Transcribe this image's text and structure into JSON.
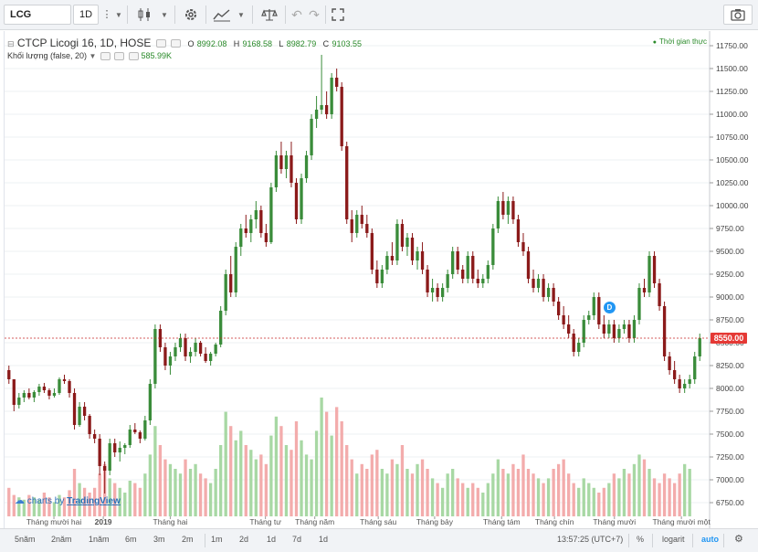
{
  "toolbar": {
    "symbol": "LCG",
    "interval": "1D",
    "icons": [
      "more-icon",
      "candles-icon",
      "gear-icon",
      "indicators-icon",
      "compare-icon",
      "undo-icon",
      "redo-icon",
      "fullscreen-icon",
      "camera-icon"
    ]
  },
  "legend": {
    "title": "CTCP Licogi 16, 1D, HOSE",
    "o_label": "O",
    "o_value": "8992.08",
    "h_label": "H",
    "h_value": "9168.58",
    "l_label": "L",
    "l_value": "8982.79",
    "c_label": "C",
    "c_value": "9103.55",
    "volume_label": "Khối lượng (false, 20)",
    "volume_value": "585.99K",
    "realtime": "Thời gian thực"
  },
  "price_axis": {
    "ticks": [
      "11750.00",
      "11500.00",
      "11250.00",
      "11000.00",
      "10750.00",
      "10500.00",
      "10250.00",
      "10000.00",
      "9750.00",
      "9500.00",
      "9250.00",
      "9000.00",
      "8750.00",
      "8500.00",
      "8250.00",
      "8000.00",
      "7750.00",
      "7500.00",
      "7250.00",
      "7000.00",
      "6750.00"
    ],
    "current_price": "8550.00"
  },
  "time_axis": [
    "Tháng mười hai",
    "2019",
    "Tháng hai",
    "Tháng tư",
    "Tháng năm",
    "Tháng sáu",
    "Tháng bảy",
    "Tháng tám",
    "Tháng chín",
    "Tháng mười",
    "Tháng mười một"
  ],
  "marker": "D",
  "branding": {
    "prefix": "charts by",
    "name": "TradingView"
  },
  "bottom": {
    "ranges": [
      "5năm",
      "2năm",
      "1năm",
      "6m",
      "3m",
      "2m",
      "1m",
      "2d",
      "1d",
      "7d",
      "1d"
    ],
    "time": "13:57:25 (UTC+7)",
    "percent": "%",
    "log": "logarit",
    "auto": "auto"
  },
  "colors": {
    "up": "#3a8c3a",
    "down": "#8b1a1a",
    "vol_up": "#9fd49a",
    "vol_down": "#f2a3a3",
    "accent": "#2196f3"
  },
  "chart_data": {
    "type": "candlestick",
    "y_range": [
      6600,
      11850
    ],
    "candles": [
      [
        8200,
        8250,
        8050,
        8100
      ],
      [
        8100,
        8100,
        7750,
        7820
      ],
      [
        7820,
        7950,
        7780,
        7900
      ],
      [
        7900,
        7980,
        7850,
        7950
      ],
      [
        7950,
        8000,
        7880,
        7900
      ],
      [
        7900,
        7980,
        7850,
        7960
      ],
      [
        7960,
        8050,
        7920,
        8020
      ],
      [
        8020,
        8060,
        7950,
        7980
      ],
      [
        7980,
        8000,
        7880,
        7920
      ],
      [
        7920,
        8000,
        7900,
        7950
      ],
      [
        7950,
        8120,
        7930,
        8100
      ],
      [
        8100,
        8150,
        8050,
        8080
      ],
      [
        8080,
        8100,
        7900,
        7950
      ],
      [
        7950,
        8000,
        7550,
        7600
      ],
      [
        7600,
        7850,
        7580,
        7800
      ],
      [
        7800,
        7850,
        7650,
        7700
      ],
      [
        7700,
        7720,
        7450,
        7500
      ],
      [
        7500,
        7550,
        7400,
        7450
      ],
      [
        7450,
        7500,
        7050,
        7150
      ],
      [
        7150,
        7200,
        6850,
        7100
      ],
      [
        7100,
        7450,
        7050,
        7400
      ],
      [
        7400,
        7450,
        7250,
        7300
      ],
      [
        7300,
        7420,
        7200,
        7350
      ],
      [
        7350,
        7400,
        7280,
        7380
      ],
      [
        7380,
        7600,
        7350,
        7550
      ],
      [
        7550,
        7620,
        7500,
        7520
      ],
      [
        7520,
        7540,
        7400,
        7450
      ],
      [
        7450,
        7700,
        7430,
        7650
      ],
      [
        7650,
        8100,
        7600,
        8050
      ],
      [
        8050,
        8700,
        8000,
        8650
      ],
      [
        8650,
        8700,
        8400,
        8450
      ],
      [
        8450,
        8500,
        8200,
        8250
      ],
      [
        8250,
        8400,
        8150,
        8350
      ],
      [
        8350,
        8500,
        8300,
        8450
      ],
      [
        8450,
        8600,
        8400,
        8550
      ],
      [
        8550,
        8600,
        8300,
        8350
      ],
      [
        8350,
        8450,
        8280,
        8400
      ],
      [
        8400,
        8550,
        8350,
        8500
      ],
      [
        8500,
        8520,
        8350,
        8380
      ],
      [
        8380,
        8450,
        8280,
        8300
      ],
      [
        8300,
        8400,
        8250,
        8380
      ],
      [
        8380,
        8500,
        8350,
        8480
      ],
      [
        8480,
        8900,
        8450,
        8850
      ],
      [
        8850,
        9300,
        8800,
        9250
      ],
      [
        9250,
        9450,
        9000,
        9050
      ],
      [
        9050,
        9600,
        9000,
        9550
      ],
      [
        9550,
        9800,
        9450,
        9750
      ],
      [
        9750,
        9900,
        9650,
        9700
      ],
      [
        9700,
        9900,
        9600,
        9850
      ],
      [
        9850,
        10050,
        9750,
        9950
      ],
      [
        9950,
        10000,
        9650,
        9700
      ],
      [
        9700,
        9800,
        9550,
        9600
      ],
      [
        9600,
        10250,
        9580,
        10200
      ],
      [
        10200,
        10600,
        10150,
        10550
      ],
      [
        10550,
        10700,
        10350,
        10400
      ],
      [
        10400,
        10600,
        10300,
        10550
      ],
      [
        10550,
        10700,
        10200,
        10250
      ],
      [
        10250,
        10300,
        9800,
        9850
      ],
      [
        9850,
        10350,
        9800,
        10300
      ],
      [
        10300,
        10600,
        10250,
        10550
      ],
      [
        10550,
        11000,
        10500,
        10950
      ],
      [
        10950,
        11200,
        10850,
        11050
      ],
      [
        11050,
        11650,
        11000,
        11100
      ],
      [
        11100,
        11250,
        10950,
        11000
      ],
      [
        11000,
        11450,
        10950,
        11400
      ],
      [
        11400,
        11500,
        11250,
        11300
      ],
      [
        11300,
        11350,
        10600,
        10650
      ],
      [
        10650,
        10700,
        9800,
        9850
      ],
      [
        9850,
        9950,
        9600,
        9700
      ],
      [
        9700,
        9950,
        9650,
        9900
      ],
      [
        9900,
        10000,
        9750,
        9800
      ],
      [
        9800,
        9900,
        9650,
        9700
      ],
      [
        9700,
        9750,
        9250,
        9300
      ],
      [
        9300,
        9400,
        9100,
        9150
      ],
      [
        9150,
        9350,
        9100,
        9300
      ],
      [
        9300,
        9500,
        9250,
        9450
      ],
      [
        9450,
        9600,
        9350,
        9400
      ],
      [
        9400,
        9850,
        9350,
        9800
      ],
      [
        9800,
        9850,
        9500,
        9550
      ],
      [
        9550,
        9700,
        9450,
        9650
      ],
      [
        9650,
        9700,
        9350,
        9400
      ],
      [
        9400,
        9550,
        9300,
        9500
      ],
      [
        9500,
        9600,
        9250,
        9300
      ],
      [
        9300,
        9350,
        9000,
        9050
      ],
      [
        9050,
        9200,
        8950,
        9100
      ],
      [
        9100,
        9150,
        8950,
        9000
      ],
      [
        9000,
        9150,
        8950,
        9100
      ],
      [
        9100,
        9300,
        9050,
        9250
      ],
      [
        9250,
        9550,
        9200,
        9500
      ],
      [
        9500,
        9550,
        9250,
        9300
      ],
      [
        9300,
        9350,
        9150,
        9200
      ],
      [
        9200,
        9500,
        9150,
        9450
      ],
      [
        9450,
        9500,
        9150,
        9200
      ],
      [
        9200,
        9300,
        9100,
        9150
      ],
      [
        9150,
        9250,
        9100,
        9200
      ],
      [
        9200,
        9400,
        9150,
        9350
      ],
      [
        9350,
        9800,
        9300,
        9750
      ],
      [
        9750,
        10100,
        9700,
        10050
      ],
      [
        10050,
        10150,
        9850,
        9900
      ],
      [
        9900,
        10100,
        9800,
        10050
      ],
      [
        10050,
        10100,
        9800,
        9850
      ],
      [
        9850,
        9900,
        9550,
        9600
      ],
      [
        9600,
        9700,
        9450,
        9500
      ],
      [
        9500,
        9550,
        9150,
        9200
      ],
      [
        9200,
        9300,
        9050,
        9100
      ],
      [
        9100,
        9250,
        9050,
        9200
      ],
      [
        9200,
        9250,
        8950,
        9000
      ],
      [
        9000,
        9150,
        8950,
        9100
      ],
      [
        9100,
        9150,
        8900,
        8950
      ],
      [
        8950,
        9000,
        8750,
        8800
      ],
      [
        8800,
        8900,
        8650,
        8700
      ],
      [
        8700,
        8800,
        8550,
        8600
      ],
      [
        8600,
        8650,
        8350,
        8400
      ],
      [
        8400,
        8550,
        8350,
        8500
      ],
      [
        8500,
        8800,
        8450,
        8750
      ],
      [
        8750,
        8850,
        8700,
        8800
      ],
      [
        8800,
        9050,
        8750,
        9000
      ],
      [
        9000,
        9050,
        8650,
        8700
      ],
      [
        8700,
        8800,
        8550,
        8600
      ],
      [
        8600,
        8750,
        8550,
        8700
      ],
      [
        8700,
        8750,
        8500,
        8550
      ],
      [
        8550,
        8700,
        8500,
        8650
      ],
      [
        8650,
        8750,
        8600,
        8700
      ],
      [
        8700,
        8750,
        8500,
        8550
      ],
      [
        8550,
        8800,
        8500,
        8750
      ],
      [
        8750,
        9150,
        8700,
        9100
      ],
      [
        9100,
        9200,
        9000,
        9050
      ],
      [
        9050,
        9500,
        9000,
        9450
      ],
      [
        9450,
        9500,
        9100,
        9150
      ],
      [
        9150,
        9200,
        8850,
        8900
      ],
      [
        8900,
        8950,
        8300,
        8350
      ],
      [
        8350,
        8400,
        8150,
        8200
      ],
      [
        8200,
        8300,
        8050,
        8100
      ],
      [
        8100,
        8150,
        7950,
        8000
      ],
      [
        8000,
        8100,
        7950,
        8050
      ],
      [
        8050,
        8150,
        8000,
        8100
      ],
      [
        8100,
        8400,
        8050,
        8350
      ],
      [
        8350,
        8600,
        8300,
        8550
      ]
    ],
    "volumes": [
      12,
      9,
      8,
      7,
      9,
      8,
      7,
      10,
      8,
      6,
      9,
      8,
      11,
      20,
      14,
      12,
      10,
      12,
      18,
      22,
      16,
      14,
      12,
      10,
      15,
      14,
      12,
      18,
      26,
      38,
      30,
      24,
      22,
      20,
      18,
      24,
      20,
      22,
      18,
      16,
      14,
      20,
      30,
      44,
      38,
      32,
      36,
      30,
      28,
      24,
      26,
      22,
      34,
      42,
      38,
      30,
      28,
      40,
      32,
      26,
      24,
      36,
      50,
      44,
      34,
      46,
      40,
      30,
      24,
      18,
      22,
      20,
      26,
      28,
      20,
      18,
      24,
      22,
      30,
      20,
      18,
      22,
      24,
      20,
      16,
      14,
      12,
      18,
      20,
      16,
      14,
      12,
      14,
      12,
      10,
      14,
      18,
      24,
      20,
      18,
      22,
      20,
      26,
      20,
      18,
      16,
      14,
      16,
      20,
      22,
      24,
      18,
      14,
      12,
      16,
      14,
      12,
      10,
      12,
      14,
      18,
      16,
      20,
      18,
      22,
      26,
      24,
      20,
      16,
      14,
      18,
      16,
      14,
      18,
      22,
      20
    ]
  }
}
